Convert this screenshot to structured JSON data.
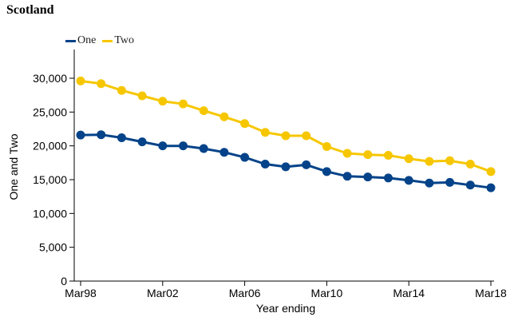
{
  "chart_data": {
    "type": "line",
    "title": "Scotland",
    "xlabel": "Year ending",
    "ylabel": "One and Two",
    "x": [
      "Mar98",
      "Mar99",
      "Mar00",
      "Mar01",
      "Mar02",
      "Mar03",
      "Mar04",
      "Mar05",
      "Mar06",
      "Mar07",
      "Mar08",
      "Mar09",
      "Mar10",
      "Mar11",
      "Mar12",
      "Mar13",
      "Mar14",
      "Mar15",
      "Mar16",
      "Mar17",
      "Mar18"
    ],
    "xticks": [
      "Mar98",
      "Mar02",
      "Mar06",
      "Mar10",
      "Mar14",
      "Mar18"
    ],
    "ylim": [
      0,
      35000
    ],
    "yticks": [
      0,
      5000,
      10000,
      15000,
      20000,
      25000,
      30000
    ],
    "ytick_labels": [
      "0",
      "5,000",
      "10,000",
      "15,000",
      "20,000",
      "25,000",
      "30,000"
    ],
    "legend_position": "top-left",
    "grid": false,
    "series": [
      {
        "name": "One",
        "color": "#044389",
        "values": [
          21600,
          21650,
          21200,
          20600,
          20000,
          20000,
          19600,
          19050,
          18300,
          17300,
          16900,
          17200,
          16200,
          15500,
          15400,
          15250,
          14900,
          14500,
          14600,
          14200,
          13800
        ]
      },
      {
        "name": "Two",
        "color": "#F6C700",
        "values": [
          29600,
          29200,
          28200,
          27400,
          26600,
          26200,
          25200,
          24300,
          23300,
          22000,
          21500,
          21500,
          19900,
          18900,
          18700,
          18600,
          18100,
          17700,
          17800,
          17300,
          16200
        ]
      }
    ]
  }
}
